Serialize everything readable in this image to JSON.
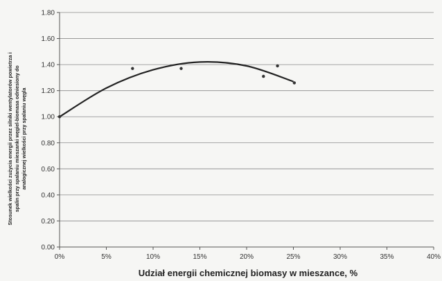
{
  "chart_data": {
    "type": "scatter",
    "title": "",
    "xlabel": "Udział energii chemicznej biomasy w mieszance, %",
    "ylabel_lines": [
      "Stosunek wielkości zużycia energii przez silniki wentylatorów powietrza i",
      "spalin przy spalaniu mieszanki węgiel-biomasa odniesiony do",
      "analogicznej wielkości przy spalaniu węgla"
    ],
    "xlim": [
      0,
      40
    ],
    "ylim": [
      0,
      1.8
    ],
    "grid": true,
    "x_ticks": [
      {
        "value": 0,
        "label": "0%"
      },
      {
        "value": 5,
        "label": "5%"
      },
      {
        "value": 10,
        "label": "10%"
      },
      {
        "value": 15,
        "label": "15%"
      },
      {
        "value": 20,
        "label": "20%"
      },
      {
        "value": 25,
        "label": "25%"
      },
      {
        "value": 30,
        "label": "30%"
      },
      {
        "value": 35,
        "label": "35%"
      },
      {
        "value": 40,
        "label": "40%"
      }
    ],
    "y_ticks": [
      {
        "value": 0,
        "label": "0.00"
      },
      {
        "value": 0.2,
        "label": "0.20"
      },
      {
        "value": 0.4,
        "label": "0.40"
      },
      {
        "value": 0.6,
        "label": "0.60"
      },
      {
        "value": 0.8,
        "label": "0.80"
      },
      {
        "value": 1.0,
        "label": "1.00"
      },
      {
        "value": 1.2,
        "label": "1.20"
      },
      {
        "value": 1.4,
        "label": "1.40"
      },
      {
        "value": 1.6,
        "label": "1.60"
      },
      {
        "value": 1.8,
        "label": "1.80"
      }
    ],
    "series": [
      {
        "kind": "points",
        "x": [
          0,
          7.8,
          13,
          21.8,
          23.3,
          25.1
        ],
        "y": [
          1.0,
          1.37,
          1.37,
          1.31,
          1.39,
          1.26
        ]
      },
      {
        "kind": "trend",
        "x": [
          0,
          5,
          10,
          15,
          20,
          25
        ],
        "y": [
          1.0,
          1.22,
          1.36,
          1.42,
          1.39,
          1.27
        ]
      }
    ]
  }
}
